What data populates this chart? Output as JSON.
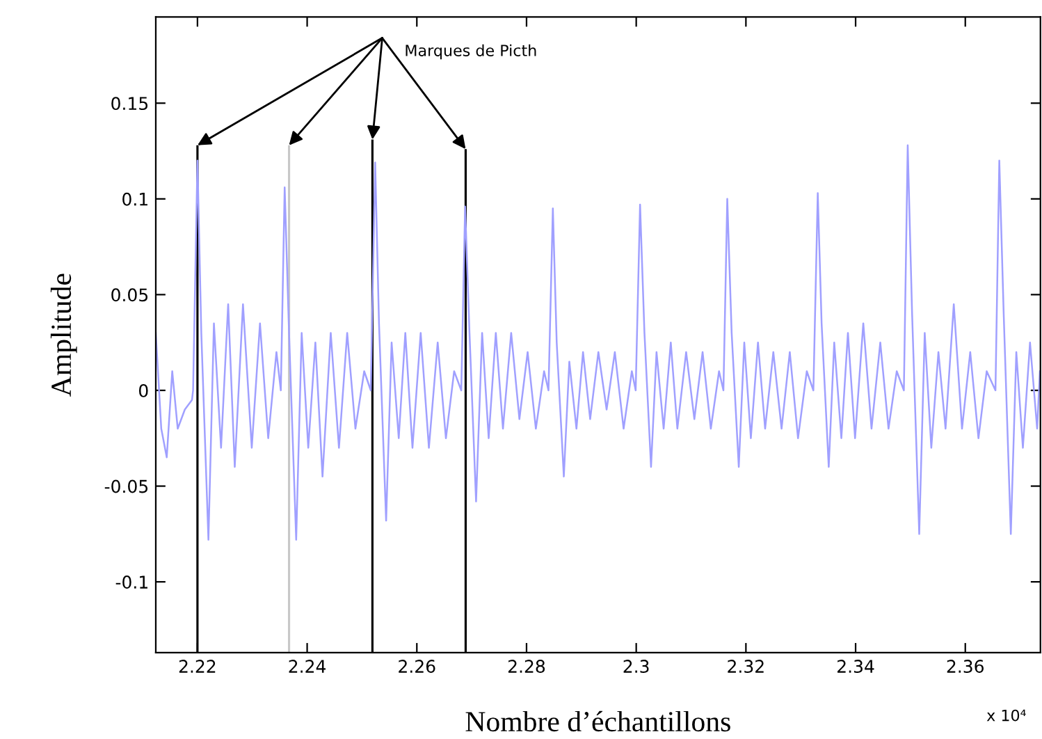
{
  "chart_data": {
    "type": "line",
    "xlabel": "Nombre d’échantillons",
    "ylabel": "Amplitude",
    "xlim": [
      2.2124,
      2.3737
    ],
    "ylim": [
      -0.137,
      0.195
    ],
    "xticks": [
      2.22,
      2.24,
      2.26,
      2.28,
      2.3,
      2.32,
      2.34,
      2.36
    ],
    "yticks": [
      {
        "value": -0.1,
        "label": "-0.1"
      },
      {
        "value": -0.05,
        "label": "-0.05"
      },
      0,
      0.05,
      0.1,
      0.15
    ],
    "grid": false,
    "legend": false,
    "annotations": [
      "Marques de Picth",
      "x 10⁴"
    ],
    "series": [
      {
        "color": "#a0a0ff",
        "x": [
          2.2124,
          2.2134,
          2.2144,
          2.2154,
          2.2164,
          2.2177,
          2.219,
          2.2192,
          2.22,
          2.2207,
          2.222,
          2.223,
          2.2243,
          2.2256,
          2.2268,
          2.2283,
          2.2299,
          2.2314,
          2.2329,
          2.2344,
          2.2352,
          2.2359,
          2.2367,
          2.238,
          2.239,
          2.2402,
          2.2415,
          2.2428,
          2.2443,
          2.2458,
          2.2473,
          2.2488,
          2.2504,
          2.2516,
          2.2524,
          2.2531,
          2.2544,
          2.2554,
          2.2567,
          2.2579,
          2.2592,
          2.2607,
          2.2622,
          2.2638,
          2.2653,
          2.2668,
          2.2681,
          2.2688,
          2.2696,
          2.2708,
          2.2719,
          2.2731,
          2.2744,
          2.2757,
          2.2772,
          2.2787,
          2.2802,
          2.2817,
          2.2832,
          2.284,
          2.2848,
          2.2855,
          2.2868,
          2.2878,
          2.2891,
          2.2903,
          2.2916,
          2.2931,
          2.2946,
          2.2961,
          2.2977,
          2.2992,
          2.2999,
          2.3007,
          2.3015,
          2.3027,
          2.3037,
          2.305,
          2.3063,
          2.3075,
          2.3091,
          2.3106,
          2.3121,
          2.3136,
          2.3151,
          2.3159,
          2.3166,
          2.3174,
          2.3187,
          2.3197,
          2.3209,
          2.3222,
          2.3235,
          2.325,
          2.3265,
          2.328,
          2.3295,
          2.3311,
          2.3323,
          2.3331,
          2.3338,
          2.3351,
          2.3361,
          2.3374,
          2.3386,
          2.3399,
          2.3414,
          2.3429,
          2.3445,
          2.346,
          2.3475,
          2.3488,
          2.3495,
          2.3503,
          2.3516,
          2.3526,
          2.3538,
          2.3551,
          2.3564,
          2.3579,
          2.3594,
          2.3609,
          2.3624,
          2.3639,
          2.3655,
          2.3662,
          2.367,
          2.3683,
          2.3693,
          2.3705,
          2.3718,
          2.3731,
          2.3736
        ],
        "values": [
          0.03,
          -0.02,
          -0.035,
          0.01,
          -0.02,
          -0.01,
          -0.005,
          0.0,
          0.12,
          0.03,
          -0.078,
          0.035,
          -0.03,
          0.045,
          -0.04,
          0.045,
          -0.03,
          0.035,
          -0.025,
          0.02,
          0.0,
          0.106,
          0.03,
          -0.078,
          0.03,
          -0.03,
          0.025,
          -0.045,
          0.03,
          -0.03,
          0.03,
          -0.02,
          0.01,
          0.0,
          0.119,
          0.035,
          -0.068,
          0.025,
          -0.025,
          0.03,
          -0.03,
          0.03,
          -0.03,
          0.025,
          -0.025,
          0.01,
          0.0,
          0.096,
          0.03,
          -0.058,
          0.03,
          -0.025,
          0.03,
          -0.02,
          0.03,
          -0.015,
          0.02,
          -0.02,
          0.01,
          0.0,
          0.095,
          0.025,
          -0.045,
          0.015,
          -0.02,
          0.02,
          -0.015,
          0.02,
          -0.01,
          0.02,
          -0.02,
          0.01,
          0.0,
          0.097,
          0.03,
          -0.04,
          0.02,
          -0.02,
          0.025,
          -0.02,
          0.02,
          -0.015,
          0.02,
          -0.02,
          0.01,
          0.0,
          0.1,
          0.03,
          -0.04,
          0.025,
          -0.025,
          0.025,
          -0.02,
          0.02,
          -0.02,
          0.02,
          -0.025,
          0.01,
          0.0,
          0.103,
          0.035,
          -0.04,
          0.025,
          -0.025,
          0.03,
          -0.025,
          0.035,
          -0.02,
          0.025,
          -0.02,
          0.01,
          0.0,
          0.128,
          0.04,
          -0.075,
          0.03,
          -0.03,
          0.02,
          -0.02,
          0.045,
          -0.02,
          0.02,
          -0.025,
          0.01,
          0.0,
          0.12,
          0.04,
          -0.075,
          0.02,
          -0.03,
          0.025,
          -0.02,
          0.01
        ]
      },
      {
        "type": "bar",
        "colors": [
          "#000000",
          "#c8c8c8",
          "#000000",
          "#000000"
        ],
        "x": [
          2.22,
          2.2367,
          2.2519,
          2.2689
        ],
        "base": [
          -0.137,
          -0.137,
          -0.137,
          -0.137
        ],
        "values": [
          0.265,
          0.265,
          0.268,
          0.263
        ]
      }
    ]
  }
}
